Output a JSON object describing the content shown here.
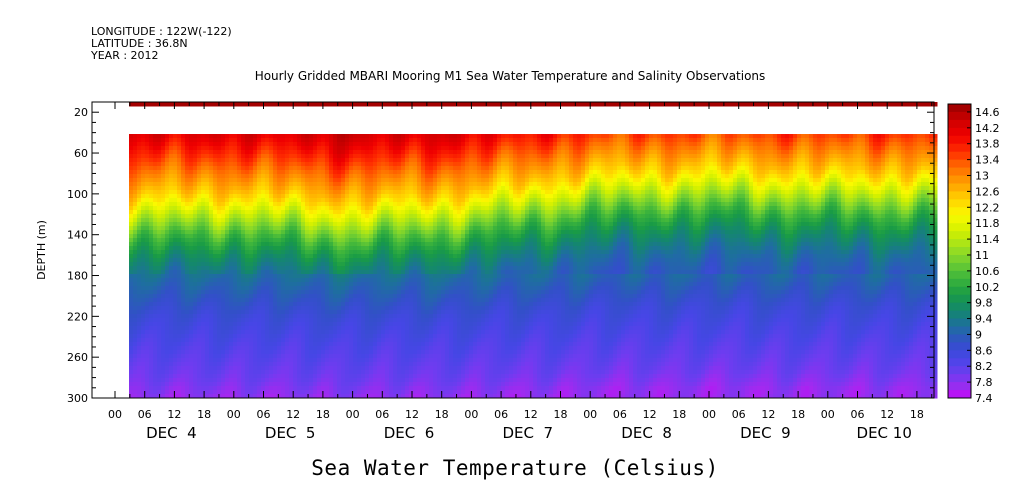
{
  "header": {
    "longitude": "LONGITUDE : 122W(-122)",
    "latitude": "LATITUDE : 36.8N",
    "year": "YEAR : 2012"
  },
  "chart_data": {
    "type": "heatmap",
    "title": "Hourly Gridded MBARI Mooring M1 Sea Water Temperature and Salinity Observations",
    "xlabel": "Sea Water Temperature (Celsius)",
    "ylabel": "DEPTH (m)",
    "ylim": [
      300,
      10
    ],
    "y_ticks": [
      20,
      60,
      100,
      140,
      180,
      220,
      260,
      300
    ],
    "x_hour_ticks": [
      "00",
      "06",
      "12",
      "18",
      "00",
      "06",
      "12",
      "18",
      "00",
      "06",
      "12",
      "18",
      "00",
      "06",
      "12",
      "18",
      "00",
      "06",
      "12",
      "18",
      "00",
      "06",
      "12",
      "18",
      "00",
      "06",
      "12",
      "18"
    ],
    "x_day_labels": [
      "DEC  4",
      "DEC  5",
      "DEC  6",
      "DEC  7",
      "DEC  8",
      "DEC  9",
      "DEC 10"
    ],
    "colorbar_levels": [
      "14.6",
      "14.2",
      "13.8",
      "13.4",
      "13",
      "12.6",
      "12.2",
      "11.8",
      "11.4",
      "11",
      "10.6",
      "10.2",
      "9.8",
      "9.4",
      "9",
      "8.6",
      "8.2",
      "7.8",
      "7.4"
    ],
    "colorbar_min": 7.4,
    "colorbar_max": 14.8,
    "profile": {
      "depths": [
        10,
        20,
        40,
        60,
        80,
        100,
        120,
        140,
        160,
        180,
        200,
        220,
        240,
        260,
        280,
        300
      ],
      "temps": [
        14.6,
        14.6,
        14.2,
        13.6,
        13.0,
        12.4,
        11.4,
        10.4,
        9.7,
        9.2,
        8.9,
        8.6,
        8.4,
        8.2,
        8.0,
        7.7
      ]
    },
    "mixed_layer_depth_by_day": [
      {
        "day": "DEC 4",
        "depth": 80
      },
      {
        "day": "DEC 5",
        "depth": 75
      },
      {
        "day": "DEC 6",
        "depth": 85
      },
      {
        "day": "DEC 7",
        "depth": 75
      },
      {
        "day": "DEC 8",
        "depth": 55
      },
      {
        "day": "DEC 9",
        "depth": 50
      },
      {
        "day": "DEC 10",
        "depth": 55
      }
    ],
    "data_gap_depths": [
      20,
      40
    ]
  }
}
